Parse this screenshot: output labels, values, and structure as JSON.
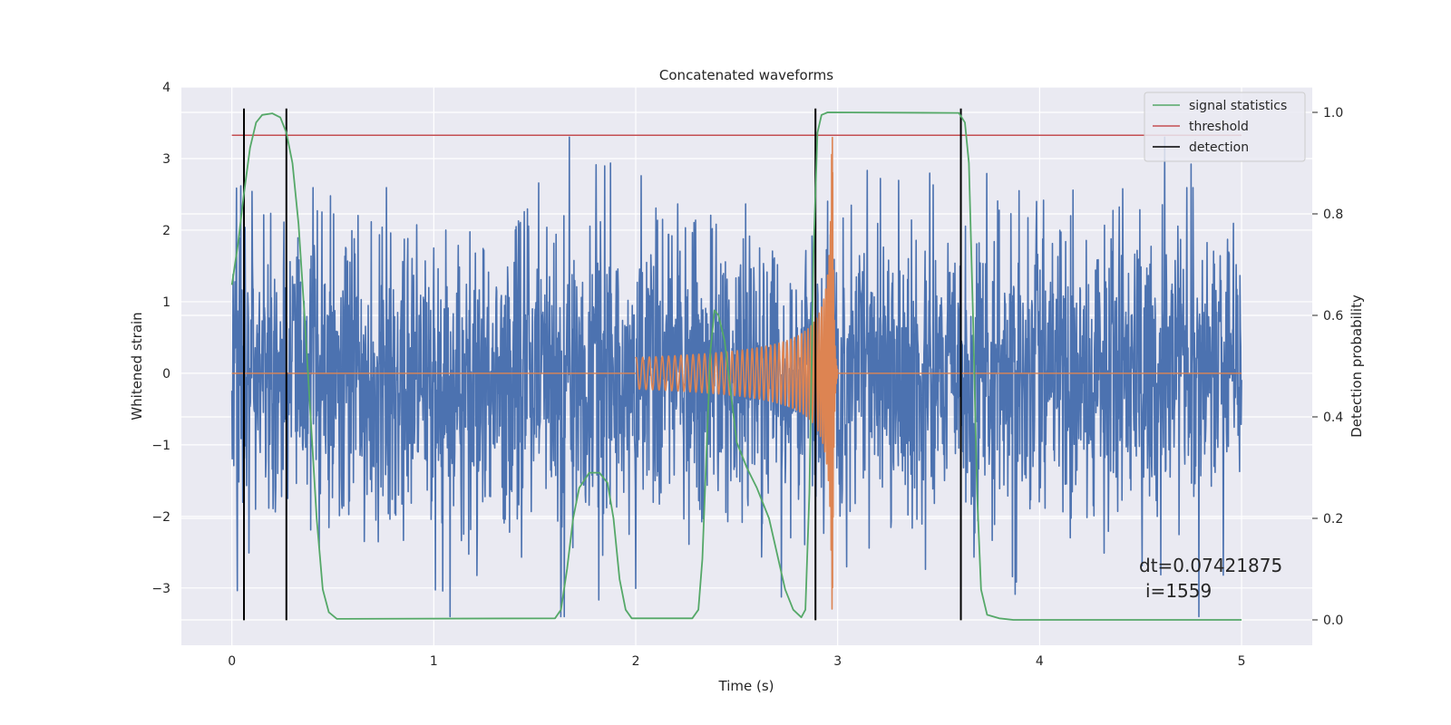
{
  "chart_data": {
    "type": "line",
    "title": "Concatenated waveforms",
    "xlabel": "Time (s)",
    "ylabel_left": "Whitened strain",
    "ylabel_right": "Detection probability",
    "xlim": [
      -0.25,
      5.35
    ],
    "ylim_left": [
      -3.8,
      4.0
    ],
    "ylim_right": [
      -0.05,
      1.05
    ],
    "x_ticks": [
      0,
      1,
      2,
      3,
      4,
      5
    ],
    "x_tick_labels": [
      "0",
      "1",
      "2",
      "3",
      "4",
      "5"
    ],
    "y_left_ticks": [
      -3,
      -2,
      -1,
      0,
      1,
      2,
      3,
      4
    ],
    "y_left_tick_labels": [
      "−3",
      "−2",
      "−1",
      "0",
      "1",
      "2",
      "3",
      "4"
    ],
    "y_right_ticks": [
      0.0,
      0.2,
      0.4,
      0.6,
      0.8,
      1.0
    ],
    "y_right_tick_labels": [
      "0.0",
      "0.2",
      "0.4",
      "0.6",
      "0.8",
      "1.0"
    ],
    "grid": true,
    "legend_position": "top-right",
    "legend": [
      {
        "label": "signal statistics",
        "color": "#55a868",
        "kind": "line"
      },
      {
        "label": "threshold",
        "color": "#c44e52",
        "kind": "line"
      },
      {
        "label": "detection",
        "color": "#000000",
        "kind": "line"
      }
    ],
    "series": [
      {
        "name": "whitened strain (noise)",
        "axis": "left",
        "color": "#4c72b0",
        "x_range": [
          0,
          5
        ],
        "amplitude_range": [
          -3.4,
          3.3
        ],
        "description": "noise"
      },
      {
        "name": "injected chirp",
        "axis": "left",
        "color": "#dd8452",
        "x_range": [
          2.0,
          3.0
        ],
        "peak": 3.3
      },
      {
        "name": "signal statistics",
        "axis": "right",
        "color": "#55a868",
        "points": [
          [
            0.0,
            0.66
          ],
          [
            0.03,
            0.74
          ],
          [
            0.06,
            0.84
          ],
          [
            0.09,
            0.93
          ],
          [
            0.12,
            0.98
          ],
          [
            0.15,
            0.995
          ],
          [
            0.2,
            0.998
          ],
          [
            0.24,
            0.99
          ],
          [
            0.27,
            0.96
          ],
          [
            0.3,
            0.9
          ],
          [
            0.33,
            0.78
          ],
          [
            0.36,
            0.6
          ],
          [
            0.39,
            0.4
          ],
          [
            0.42,
            0.2
          ],
          [
            0.45,
            0.06
          ],
          [
            0.48,
            0.015
          ],
          [
            0.52,
            0.002
          ],
          [
            1.6,
            0.003
          ],
          [
            1.63,
            0.02
          ],
          [
            1.66,
            0.1
          ],
          [
            1.69,
            0.2
          ],
          [
            1.72,
            0.26
          ],
          [
            1.77,
            0.29
          ],
          [
            1.82,
            0.29
          ],
          [
            1.86,
            0.27
          ],
          [
            1.89,
            0.2
          ],
          [
            1.92,
            0.08
          ],
          [
            1.95,
            0.02
          ],
          [
            1.98,
            0.003
          ],
          [
            2.28,
            0.003
          ],
          [
            2.31,
            0.02
          ],
          [
            2.33,
            0.12
          ],
          [
            2.35,
            0.33
          ],
          [
            2.37,
            0.53
          ],
          [
            2.39,
            0.61
          ],
          [
            2.41,
            0.6
          ],
          [
            2.44,
            0.55
          ],
          [
            2.47,
            0.45
          ],
          [
            2.5,
            0.35
          ],
          [
            2.55,
            0.3
          ],
          [
            2.6,
            0.26
          ],
          [
            2.66,
            0.2
          ],
          [
            2.7,
            0.13
          ],
          [
            2.74,
            0.06
          ],
          [
            2.78,
            0.02
          ],
          [
            2.82,
            0.005
          ],
          [
            2.84,
            0.02
          ],
          [
            2.86,
            0.25
          ],
          [
            2.88,
            0.72
          ],
          [
            2.9,
            0.96
          ],
          [
            2.92,
            0.995
          ],
          [
            2.95,
            1.0
          ],
          [
            3.6,
            0.999
          ],
          [
            3.63,
            0.98
          ],
          [
            3.65,
            0.9
          ],
          [
            3.67,
            0.6
          ],
          [
            3.69,
            0.25
          ],
          [
            3.71,
            0.06
          ],
          [
            3.74,
            0.01
          ],
          [
            3.8,
            0.003
          ],
          [
            3.87,
            0.0
          ],
          [
            5.0,
            0.0
          ]
        ]
      }
    ],
    "threshold": {
      "value": 0.955,
      "axis": "right",
      "x_range": [
        0,
        5
      ],
      "color": "#c44e52"
    },
    "detections": [
      0.06,
      0.27,
      2.89,
      3.61
    ],
    "detection_color": "#000000",
    "annotation": {
      "line1": "dt=0.07421875",
      "line2": "i=1559"
    }
  },
  "colors": {
    "figure_background": "#ffffff",
    "plot_background": "#eaeaf2",
    "grid": "#ffffff"
  }
}
